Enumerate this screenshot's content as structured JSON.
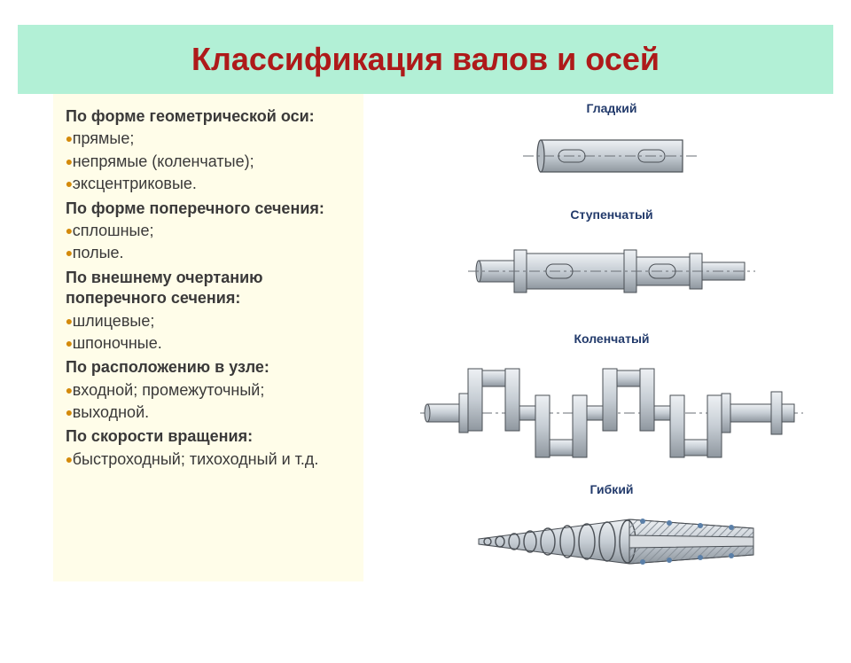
{
  "title": "Классификация валов и осей",
  "categories": [
    {
      "heading": "По форме геометрической оси:",
      "items": [
        "прямые;",
        "непрямые (коленчатые);",
        "эксцентриковые."
      ]
    },
    {
      "heading": "По форме поперечного сечения:",
      "items": [
        "сплошные;",
        "полые."
      ]
    },
    {
      "heading": "По внешнему очертанию поперечного сечения:",
      "items": [
        "шлицевые;",
        "шпоночные."
      ]
    },
    {
      "heading": "По расположению в узле:",
      "items": [
        "входной; промежуточный;",
        "выходной."
      ]
    },
    {
      "heading": "По скорости вращения:",
      "items": [
        "быстроходный; тихоходный и т.д."
      ]
    }
  ],
  "diagrams": [
    {
      "label": "Гладкий"
    },
    {
      "label": "Ступенчатый"
    },
    {
      "label": "Коленчатый"
    },
    {
      "label": "Гибкий"
    }
  ],
  "colors": {
    "headerBg": "#b2f0d6",
    "title": "#ae1a1a",
    "textBg": "#fffde9",
    "bullet": "#d48a0a",
    "bodyText": "#3a3939",
    "diagLabel": "#223a6b",
    "shaftLight": "#d8dce0",
    "shaftMid": "#b5bcc3",
    "shaftDark": "#8a929a",
    "stroke": "#4a4f55",
    "centerline": "#6a6f75"
  }
}
